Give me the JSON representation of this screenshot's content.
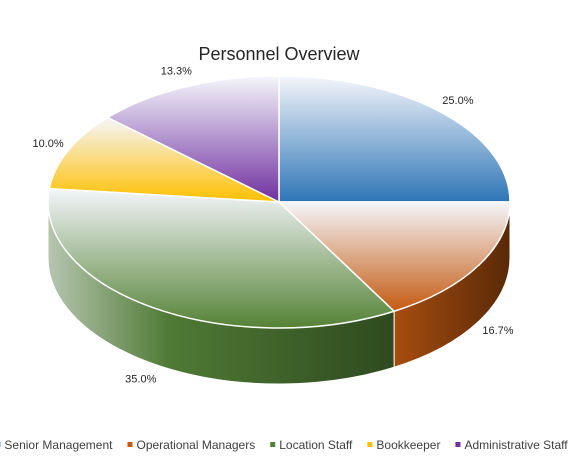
{
  "chart_data": {
    "type": "pie",
    "title": "Personnel Overview",
    "categories": [
      "Senior Management",
      "Operational Managers",
      "Location Staff",
      "Bookkeeper",
      "Administrative Staff"
    ],
    "values": [
      25.0,
      16.7,
      35.0,
      10.0,
      13.3
    ],
    "labels": [
      "25.0%",
      "16.7%",
      "35.0%",
      "10.0%",
      "13.3%"
    ],
    "colors": [
      "#2E75B6",
      "#C55A11",
      "#548235",
      "#FFC000",
      "#7030A0"
    ],
    "legend_position": "bottom",
    "style": "3d-pie"
  }
}
